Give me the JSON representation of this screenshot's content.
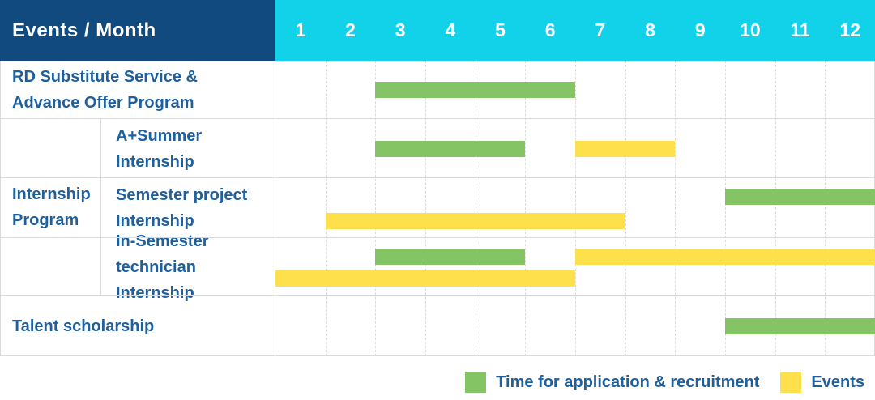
{
  "header": {
    "title": "Events / Month",
    "months": [
      "1",
      "2",
      "3",
      "4",
      "5",
      "6",
      "7",
      "8",
      "9",
      "10",
      "11",
      "12"
    ]
  },
  "rows": [
    {
      "label_lines": [
        "RD Substitute Service &",
        "Advance Offer Program"
      ]
    },
    {
      "label_lines": [
        "A+Summer",
        "Internship"
      ]
    },
    {
      "label_lines": [
        "Semester project",
        "Internship"
      ]
    },
    {
      "label_lines": [
        "In-Semester",
        "technician Internship"
      ]
    },
    {
      "label_lines": [
        "Talent scholarship"
      ]
    }
  ],
  "group": {
    "label_lines": [
      "Internship",
      "Program"
    ]
  },
  "legend": [
    {
      "label": "Time for application & recruitment",
      "color": "#85c464"
    },
    {
      "label": "Events",
      "color": "#fde04b"
    }
  ],
  "colors": {
    "header_navy": "#114a7e",
    "header_cyan": "#12d2ea",
    "application_green": "#85c464",
    "events_yellow": "#fde04b",
    "label_blue": "#1e5f9e",
    "grid_gray": "#d9d9d9"
  },
  "chart_data": {
    "type": "bar",
    "variant": "gantt",
    "title": "Events / Month",
    "xlabel": "Month",
    "x_ticks": [
      1,
      2,
      3,
      4,
      5,
      6,
      7,
      8,
      9,
      10,
      11,
      12
    ],
    "x_range": [
      1,
      12
    ],
    "grid": true,
    "legend_position": "bottom-right",
    "series_colors": {
      "Time for application & recruitment": "#85c464",
      "Events": "#fde04b"
    },
    "tasks": [
      {
        "row": "RD Substitute Service & Advance Offer Program",
        "group": null,
        "bars": [
          {
            "series": "Time for application & recruitment",
            "start_month": 3,
            "end_month": 6,
            "lane": "middle"
          }
        ]
      },
      {
        "row": "A+Summer Internship",
        "group": "Internship Program",
        "bars": [
          {
            "series": "Time for application & recruitment",
            "start_month": 3,
            "end_month": 5,
            "lane": "middle"
          },
          {
            "series": "Events",
            "start_month": 7,
            "end_month": 8,
            "lane": "middle"
          }
        ]
      },
      {
        "row": "Semester project Internship",
        "group": "Internship Program",
        "bars": [
          {
            "series": "Time for application & recruitment",
            "start_month": 10,
            "end_month": 12,
            "lane": "top"
          },
          {
            "series": "Events",
            "start_month": 2,
            "end_month": 7,
            "lane": "bottom"
          }
        ]
      },
      {
        "row": "In-Semester technician Internship",
        "group": "Internship Program",
        "bars": [
          {
            "series": "Time for application & recruitment",
            "start_month": 3,
            "end_month": 5,
            "lane": "top"
          },
          {
            "series": "Events",
            "start_month": 7,
            "end_month": 12,
            "lane": "top"
          },
          {
            "series": "Events",
            "start_month": 1,
            "end_month": 6,
            "lane": "bottom"
          }
        ]
      },
      {
        "row": "Talent scholarship",
        "group": null,
        "bars": [
          {
            "series": "Time for application & recruitment",
            "start_month": 10,
            "end_month": 12,
            "lane": "middle"
          }
        ]
      }
    ]
  }
}
